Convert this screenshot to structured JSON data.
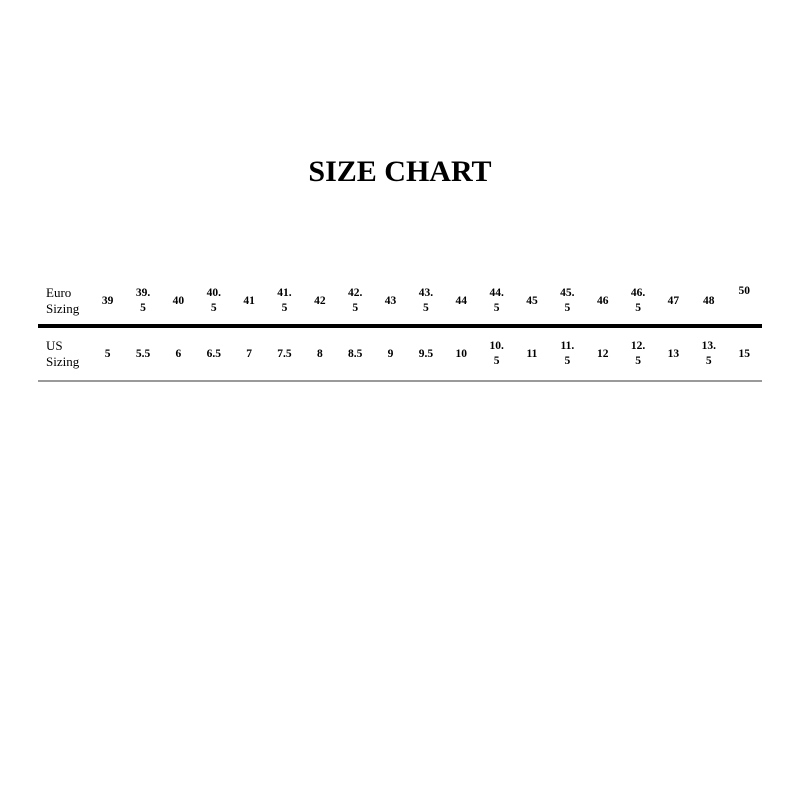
{
  "title": "SIZE CHART",
  "table": {
    "rows": [
      {
        "label": "Euro Sizing",
        "values": [
          "39",
          "39.5",
          "40",
          "40.5",
          "41",
          "41.5",
          "42",
          "42.5",
          "43",
          "43.5",
          "44",
          "44.5",
          "45",
          "45.5",
          "46",
          "46.5",
          "47",
          "48",
          "50"
        ]
      },
      {
        "label": "US Sizing",
        "values": [
          "5",
          "5.5",
          "6",
          "6.5",
          "7",
          "7.5",
          "8",
          "8.5",
          "9",
          "9.5",
          "10",
          "10.5",
          "11",
          "11.5",
          "12",
          "12.5",
          "13",
          "13.5",
          "15"
        ]
      }
    ]
  }
}
